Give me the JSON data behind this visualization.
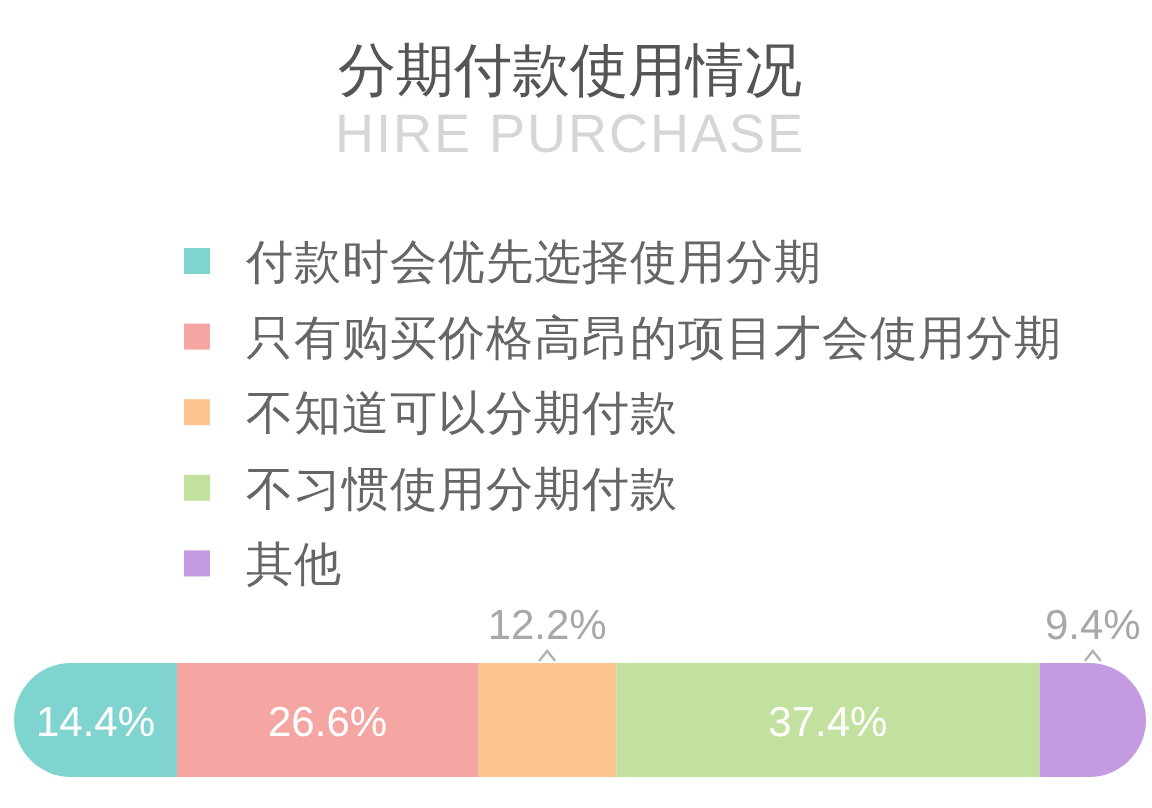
{
  "chart_data": {
    "type": "bar",
    "title": "分期付款使用情况",
    "subtitle": "HIRE PURCHASE",
    "orientation": "horizontal",
    "stacked": true,
    "legend": "top left",
    "categories": [
      null
    ],
    "series": [
      {
        "name": "付款时会优先选择使用分期",
        "color": "#80d4d0",
        "values": [
          14.4
        ],
        "value_labels": [
          "14.4%"
        ]
      },
      {
        "name": "只有购买价格高昂的项目才会使用分期",
        "color": "#f5a5a2",
        "values": [
          26.6
        ],
        "value_labels": [
          "26.6%"
        ]
      },
      {
        "name": "不知道可以分期付款",
        "color": "#fcc48e",
        "values": [
          12.2
        ],
        "value_labels": [
          "12.2%"
        ]
      },
      {
        "name": "不习惯使用分期付款",
        "color": "#c2e09e",
        "values": [
          37.4
        ],
        "value_labels": [
          "37.4%"
        ]
      },
      {
        "name": "其他",
        "color": "#c49ae0",
        "values": [
          9.4
        ],
        "value_labels": [
          "9.4%"
        ]
      }
    ]
  }
}
